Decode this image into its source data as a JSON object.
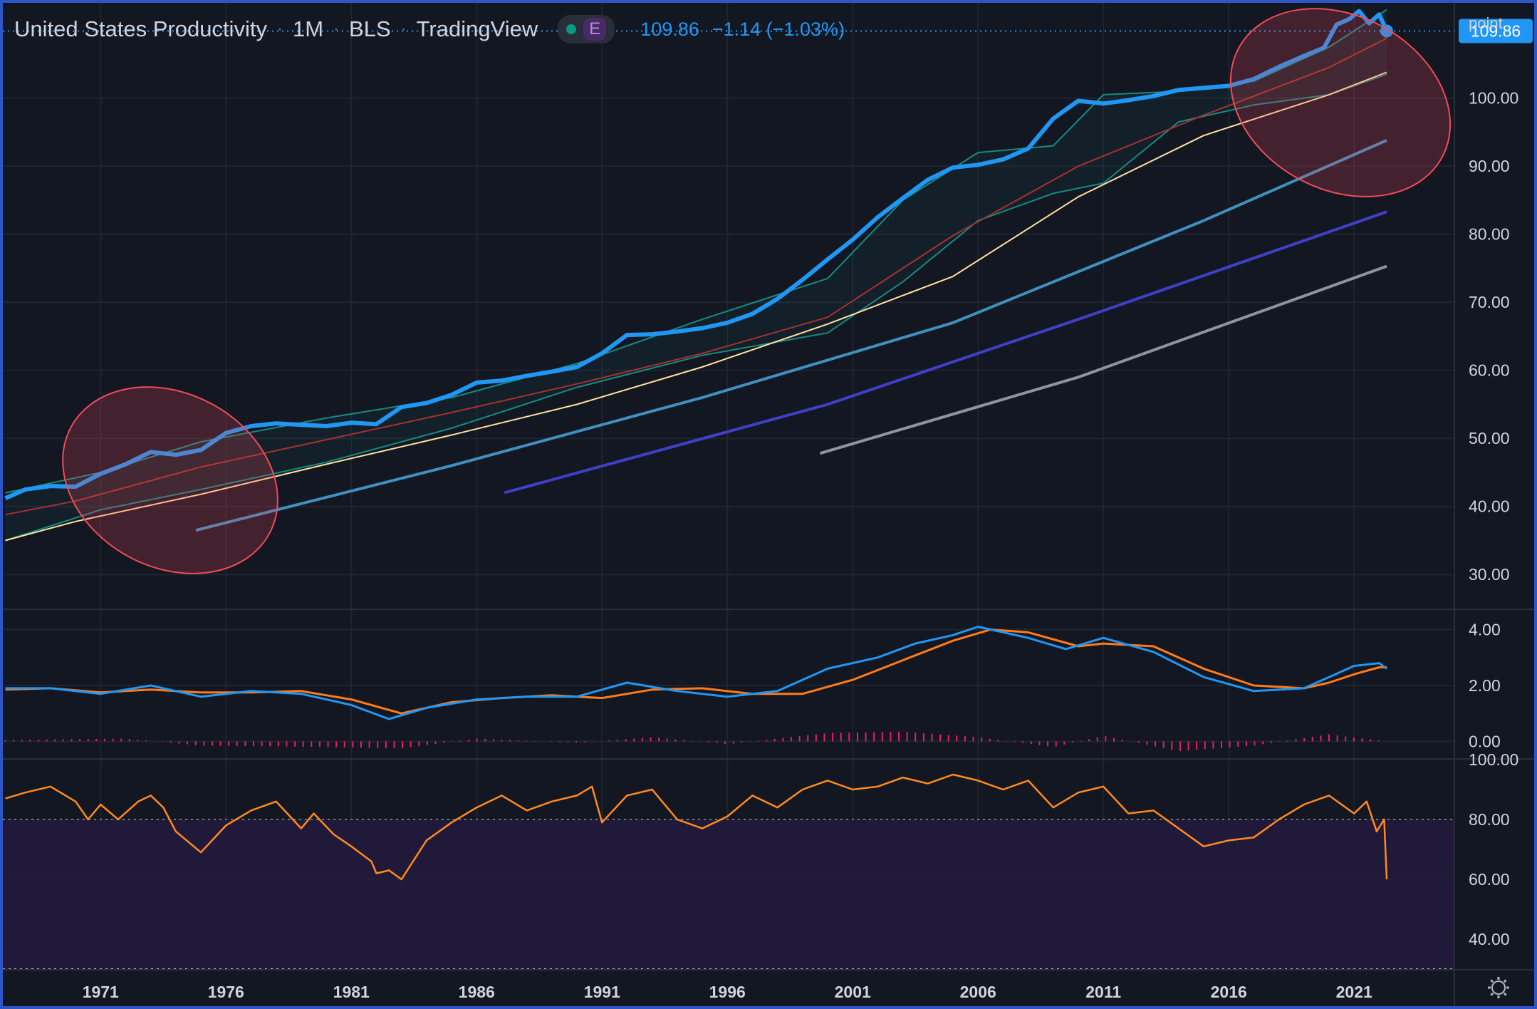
{
  "header": {
    "symbol": "United States Productivity",
    "interval": "1M",
    "source": "BLS",
    "platform": "TradingView",
    "badge_letter": "E",
    "last": "109.86",
    "change": "−1.14 (−1.03%)"
  },
  "colors": {
    "background": "#131722",
    "border": "#2f55c4",
    "price": "#2196f3",
    "macd_signal": "#ff7a1a",
    "histogram": "#e91e63",
    "rsi": "#ff8a1e",
    "rsi_band": "#21193a",
    "ellipse": "#f24a59",
    "bb_band": "#158b82",
    "ma_red": "#a8302e",
    "ma_yellow": "#ffe0a0",
    "trend_teal": "#3f8fbf",
    "trend_indigo": "#3f3fc8",
    "trend_gray": "#8f949c"
  },
  "axis": {
    "unit": "point",
    "price_ticks": [
      "100.00",
      "90.00",
      "80.00",
      "70.00",
      "60.00",
      "50.00",
      "40.00",
      "30.00"
    ],
    "macd_ticks": [
      "4.00",
      "2.00",
      "0.00"
    ],
    "rsi_ticks": [
      "100.00",
      "80.00",
      "60.00",
      "40.00"
    ],
    "x_ticks": [
      "1971",
      "1976",
      "1981",
      "1986",
      "1991",
      "1996",
      "2001",
      "2006",
      "2011",
      "2016",
      "2021"
    ],
    "last_price_badge": "109.86",
    "settings_icon": "gear-icon"
  },
  "chart_data": [
    {
      "type": "line",
      "pane": "price",
      "title": "United States Productivity",
      "ylim": [
        25,
        114
      ],
      "xlim": [
        1967.1,
        2025.0
      ],
      "series": [
        {
          "name": "United States Productivity",
          "x": [
            1967.2,
            1968,
            1969,
            1970,
            1971,
            1972,
            1973,
            1974,
            1975,
            1976,
            1977,
            1978,
            1979,
            1980,
            1981,
            1982,
            1983,
            1984,
            1985,
            1986,
            1987,
            1988,
            1989,
            1990,
            1991,
            1992,
            1993,
            1994,
            1995,
            1996,
            1997,
            1998,
            1999,
            2000,
            2001,
            2002,
            2003,
            2004,
            2005,
            2006,
            2007,
            2008,
            2009,
            2010,
            2011,
            2012,
            2013,
            2014,
            2015,
            2016,
            2017,
            2018,
            2019,
            2019.8,
            2020.3,
            2020.8,
            2021.2,
            2021.6,
            2022.0,
            2022.3
          ],
          "y": [
            41.2,
            42.5,
            43.0,
            42.9,
            44.8,
            46.2,
            48.0,
            47.6,
            48.3,
            50.8,
            51.8,
            52.2,
            52.0,
            51.8,
            52.3,
            52.1,
            54.6,
            55.2,
            56.4,
            58.2,
            58.5,
            59.2,
            59.8,
            60.5,
            62.5,
            65.2,
            65.3,
            65.7,
            66.2,
            67.0,
            68.3,
            70.5,
            73.3,
            76.3,
            79.2,
            82.5,
            85.3,
            88.0,
            89.8,
            90.2,
            91.0,
            92.6,
            97.0,
            99.6,
            99.2,
            99.7,
            100.3,
            101.2,
            101.5,
            101.8,
            102.8,
            104.6,
            106.2,
            107.4,
            110.8,
            111.6,
            112.8,
            111.0,
            112.3,
            109.86
          ]
        },
        {
          "name": "",
          "x": [
            1967.2,
            1971,
            1975,
            1980,
            1985,
            1990,
            1995,
            2000,
            2003,
            2006,
            2009,
            2011,
            2014,
            2017,
            2020,
            2022.3
          ],
          "y": [
            35.0,
            39.5,
            42.5,
            46.5,
            51.5,
            57.5,
            62.2,
            65.5,
            73.0,
            82.0,
            86.0,
            87.5,
            96.5,
            99.0,
            100.5,
            103.5
          ]
        },
        {
          "name": "",
          "x": [
            1967.2,
            1971,
            1975,
            1980,
            1985,
            1990,
            1995,
            2000,
            2003,
            2006,
            2009,
            2011,
            2014,
            2017,
            2020,
            2022.3
          ],
          "y": [
            42.0,
            45.0,
            49.5,
            53.0,
            56.0,
            61.0,
            67.5,
            73.5,
            85.0,
            92.0,
            93.0,
            100.5,
            101.0,
            102.5,
            107.5,
            113.0
          ]
        },
        {
          "name": "",
          "x": [
            1967.2,
            1970,
            1975,
            1980,
            1985,
            1990,
            1995,
            2000,
            2005,
            2010,
            2015,
            2020,
            2022.3
          ],
          "y": [
            38.8,
            40.8,
            45.8,
            49.8,
            53.8,
            58.0,
            62.5,
            67.8,
            79.8,
            90.0,
            97.5,
            104.5,
            108.8
          ]
        },
        {
          "name": "",
          "x": [
            1967.2,
            1970,
            1975,
            1980,
            1985,
            1990,
            1995,
            2000,
            2005,
            2010,
            2015,
            2020,
            2022.3
          ],
          "y": [
            35.0,
            37.8,
            41.8,
            46.2,
            50.5,
            55.0,
            60.5,
            66.8,
            73.8,
            85.5,
            94.5,
            100.5,
            103.8
          ]
        },
        {
          "name": "",
          "x": [
            1974.8,
            1985,
            1995,
            2005,
            2015,
            2022.3
          ],
          "y": [
            36.5,
            46.0,
            56.0,
            67.0,
            82.0,
            93.8
          ]
        },
        {
          "name": "",
          "x": [
            1987.1,
            2000,
            2010,
            2022.3
          ],
          "y": [
            42.0,
            55.0,
            67.5,
            83.3
          ]
        },
        {
          "name": "",
          "x": [
            1999.7,
            2010,
            2022.3
          ],
          "y": [
            47.8,
            59.0,
            75.3
          ]
        }
      ]
    },
    {
      "type": "line",
      "pane": "macd",
      "ylim": [
        -0.6,
        4.7
      ],
      "series": [
        {
          "name": "",
          "x": [
            1967.2,
            1969,
            1971,
            1973,
            1975,
            1977,
            1979,
            1981,
            1982.5,
            1984,
            1986,
            1988,
            1990,
            1992,
            1994,
            1996,
            1998,
            2000,
            2002,
            2003.5,
            2005,
            2006,
            2008,
            2009.5,
            2011,
            2013,
            2015,
            2017,
            2019,
            2020,
            2021,
            2022,
            2022.3
          ],
          "y": [
            1.9,
            1.9,
            1.7,
            2.0,
            1.6,
            1.8,
            1.7,
            1.3,
            0.8,
            1.2,
            1.5,
            1.6,
            1.6,
            2.1,
            1.8,
            1.6,
            1.8,
            2.6,
            3.0,
            3.5,
            3.8,
            4.1,
            3.7,
            3.3,
            3.7,
            3.2,
            2.3,
            1.8,
            1.9,
            2.3,
            2.7,
            2.8,
            2.6
          ]
        },
        {
          "name": "",
          "x": [
            1967.2,
            1969,
            1971,
            1973,
            1975,
            1977,
            1979,
            1981,
            1983,
            1985,
            1987,
            1989,
            1991,
            1993,
            1995,
            1997,
            1999,
            2001,
            2003,
            2005,
            2006.5,
            2008,
            2010,
            2011,
            2013,
            2015,
            2017,
            2019,
            2020,
            2021,
            2022,
            2022.3
          ],
          "y": [
            1.85,
            1.9,
            1.75,
            1.85,
            1.75,
            1.75,
            1.8,
            1.5,
            1.0,
            1.4,
            1.55,
            1.65,
            1.55,
            1.85,
            1.9,
            1.7,
            1.7,
            2.2,
            2.9,
            3.6,
            4.0,
            3.9,
            3.4,
            3.5,
            3.4,
            2.6,
            2.0,
            1.9,
            2.1,
            2.4,
            2.65,
            2.65
          ]
        },
        {
          "name": "",
          "type": "bar",
          "note": "histogram",
          "x": [
            1967.2,
            1972,
            1975,
            1980,
            1983,
            1986,
            1990,
            1993,
            1996,
            2000,
            2003,
            2006,
            2009,
            2011,
            2014,
            2017,
            2020,
            2022.3
          ],
          "y": [
            0.05,
            0.1,
            -0.15,
            -0.2,
            -0.25,
            0.1,
            -0.05,
            0.15,
            -0.1,
            0.3,
            0.35,
            0.15,
            -0.2,
            0.2,
            -0.35,
            -0.15,
            0.25,
            0.0
          ]
        }
      ]
    },
    {
      "type": "line",
      "pane": "rsi",
      "ylim": [
        30,
        100
      ],
      "series": [
        {
          "name": "",
          "x": [
            1967.2,
            1968,
            1969,
            1970,
            1970.5,
            1971,
            1971.7,
            1972.5,
            1973,
            1973.5,
            1974,
            1975,
            1976,
            1977,
            1978,
            1979,
            1979.5,
            1980.3,
            1981,
            1981.8,
            1982,
            1982.5,
            1983,
            1984,
            1985,
            1986,
            1987,
            1988,
            1989,
            1990,
            1990.6,
            1991,
            1992,
            1993,
            1994,
            1995,
            1996,
            1997,
            1998,
            1999,
            2000,
            2001,
            2002,
            2003,
            2004,
            2005,
            2006,
            2007,
            2008,
            2009,
            2010,
            2011,
            2012,
            2013,
            2014,
            2015,
            2016,
            2017,
            2018,
            2019,
            2020,
            2021,
            2021.5,
            2021.9,
            2022.2,
            2022.3
          ],
          "y": [
            87,
            89,
            91,
            86,
            80,
            85,
            80,
            86,
            88,
            84,
            76,
            69,
            78,
            83,
            86,
            77,
            82,
            75,
            71,
            66,
            62,
            63,
            60,
            73,
            79,
            84,
            88,
            83,
            86,
            88,
            91,
            79,
            88,
            90,
            80,
            77,
            81,
            88,
            84,
            90,
            93,
            90,
            91,
            94,
            92,
            95,
            93,
            90,
            93,
            84,
            89,
            91,
            82,
            83,
            77,
            71,
            73,
            74,
            80,
            85,
            88,
            82,
            86,
            76,
            80,
            60
          ]
        }
      ]
    }
  ]
}
